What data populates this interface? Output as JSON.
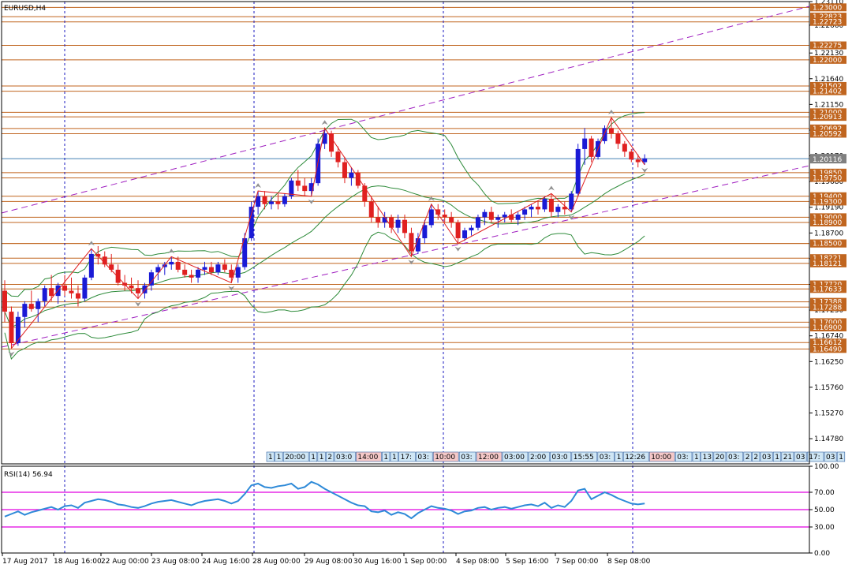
{
  "window": {
    "symbol_label": "EURUSD,H4",
    "rsi_label": "RSI(14) 56.94"
  },
  "colors": {
    "bg": "#ffffff",
    "frame": "#000000",
    "bull": "#1a1ad6",
    "bear": "#e02020",
    "band": "#2e8b3a",
    "level_line": "#c0651f",
    "level_box": "#c0651f",
    "channel": "#a020c0",
    "session": "#1818c0",
    "zigzag": "#e02020",
    "fractal": "#909090",
    "rsi_line": "#2e8ad8",
    "rsi_level": "#e000e0",
    "price_line": "#4682b4",
    "strip_fill": "#cfe6f5",
    "strip_highlight": "#f5c8c8"
  },
  "chart_data": {
    "type": "candlestick",
    "timeframe": "H4",
    "y_axis_ticks": [
      "1.23110",
      "1.22660",
      "1.22130",
      "1.21640",
      "1.21150",
      "1.20660",
      "1.20170",
      "1.19680",
      "1.19190",
      "1.18700",
      "1.18210",
      "1.17720",
      "1.17230",
      "1.16740",
      "1.16250",
      "1.15760",
      "1.15270",
      "1.14780"
    ],
    "x_axis_ticks": [
      "17 Aug 2017",
      "18 Aug 16:00",
      "22 Aug 00:00",
      "23 Aug 08:00",
      "24 Aug 16:00",
      "28 Aug 00:00",
      "29 Aug 08:00",
      "30 Aug 16:00",
      "1 Sep 00:00",
      "4 Sep 08:00",
      "5 Sep 16:00",
      "7 Sep 00:00",
      "8 Sep 08:00"
    ],
    "price_levels": [
      "1.23000",
      "1.22823",
      "1.22723",
      "1.22275",
      "1.22000",
      "1.21502",
      "1.21402",
      "1.21000",
      "1.20913",
      "1.20692",
      "1.20592",
      "1.19850",
      "1.19750",
      "1.19400",
      "1.19300",
      "1.19000",
      "1.18900",
      "1.18500",
      "1.18500",
      "1.18221",
      "1.18121",
      "1.17720",
      "1.17633",
      "1.17388",
      "1.17288",
      "1.17000",
      "1.16900",
      "1.16612",
      "1.16490"
    ],
    "current_price": "1.20116",
    "candles": [
      [
        1.176,
        1.178,
        1.17,
        1.172
      ],
      [
        1.172,
        1.173,
        1.165,
        1.166
      ],
      [
        1.166,
        1.172,
        1.1655,
        1.171
      ],
      [
        1.171,
        1.174,
        1.169,
        1.1735
      ],
      [
        1.1735,
        1.176,
        1.172,
        1.1725
      ],
      [
        1.1725,
        1.1745,
        1.17,
        1.174
      ],
      [
        1.174,
        1.177,
        1.173,
        1.1765
      ],
      [
        1.1765,
        1.179,
        1.174,
        1.175
      ],
      [
        1.175,
        1.1775,
        1.1735,
        1.177
      ],
      [
        1.177,
        1.179,
        1.175,
        1.176
      ],
      [
        1.176,
        1.1785,
        1.1745,
        1.1755
      ],
      [
        1.1755,
        1.177,
        1.173,
        1.1745
      ],
      [
        1.1745,
        1.179,
        1.174,
        1.1785
      ],
      [
        1.1785,
        1.184,
        1.178,
        1.183
      ],
      [
        1.183,
        1.1845,
        1.181,
        1.1825
      ],
      [
        1.1825,
        1.1835,
        1.1805,
        1.181
      ],
      [
        1.181,
        1.183,
        1.1795,
        1.18
      ],
      [
        1.18,
        1.181,
        1.177,
        1.1775
      ],
      [
        1.1775,
        1.179,
        1.176,
        1.177
      ],
      [
        1.177,
        1.1785,
        1.1755,
        1.1765
      ],
      [
        1.1765,
        1.178,
        1.1745,
        1.1755
      ],
      [
        1.1755,
        1.1775,
        1.1745,
        1.177
      ],
      [
        1.177,
        1.18,
        1.176,
        1.1795
      ],
      [
        1.1795,
        1.181,
        1.178,
        1.1805
      ],
      [
        1.1805,
        1.1815,
        1.179,
        1.181
      ],
      [
        1.181,
        1.1825,
        1.18,
        1.1815
      ],
      [
        1.1815,
        1.1825,
        1.1795,
        1.18
      ],
      [
        1.18,
        1.181,
        1.1785,
        1.179
      ],
      [
        1.179,
        1.18,
        1.1775,
        1.1785
      ],
      [
        1.1785,
        1.1805,
        1.1775,
        1.18
      ],
      [
        1.18,
        1.1815,
        1.179,
        1.1805
      ],
      [
        1.1805,
        1.1815,
        1.179,
        1.1795
      ],
      [
        1.1795,
        1.1815,
        1.179,
        1.181
      ],
      [
        1.181,
        1.182,
        1.1795,
        1.18
      ],
      [
        1.18,
        1.181,
        1.1775,
        1.1785
      ],
      [
        1.1785,
        1.181,
        1.1775,
        1.1805
      ],
      [
        1.1805,
        1.187,
        1.18,
        1.186
      ],
      [
        1.186,
        1.193,
        1.1855,
        1.192
      ],
      [
        1.192,
        1.195,
        1.1905,
        1.194
      ],
      [
        1.194,
        1.195,
        1.1915,
        1.1925
      ],
      [
        1.1925,
        1.194,
        1.1915,
        1.193
      ],
      [
        1.193,
        1.1945,
        1.1915,
        1.1925
      ],
      [
        1.1925,
        1.1945,
        1.192,
        1.194
      ],
      [
        1.194,
        1.1975,
        1.1935,
        1.197
      ],
      [
        1.197,
        1.199,
        1.195,
        1.196
      ],
      [
        1.196,
        1.1975,
        1.194,
        1.195
      ],
      [
        1.195,
        1.1975,
        1.194,
        1.1965
      ],
      [
        1.1965,
        1.205,
        1.196,
        1.204
      ],
      [
        1.204,
        1.207,
        1.203,
        1.206
      ],
      [
        1.206,
        1.2065,
        1.2015,
        1.2025
      ],
      [
        1.2025,
        1.2035,
        1.1995,
        1.2005
      ],
      [
        1.2005,
        1.2015,
        1.1965,
        1.1975
      ],
      [
        1.1975,
        1.1995,
        1.196,
        1.1985
      ],
      [
        1.1985,
        1.199,
        1.1955,
        1.196
      ],
      [
        1.196,
        1.1965,
        1.192,
        1.193
      ],
      [
        1.193,
        1.194,
        1.189,
        1.19
      ],
      [
        1.19,
        1.192,
        1.188,
        1.189
      ],
      [
        1.189,
        1.191,
        1.188,
        1.19
      ],
      [
        1.19,
        1.1905,
        1.187,
        1.188
      ],
      [
        1.188,
        1.1905,
        1.187,
        1.1895
      ],
      [
        1.1895,
        1.1905,
        1.186,
        1.187
      ],
      [
        1.187,
        1.188,
        1.1825,
        1.1835
      ],
      [
        1.1835,
        1.187,
        1.183,
        1.186
      ],
      [
        1.186,
        1.1895,
        1.185,
        1.1885
      ],
      [
        1.1885,
        1.1925,
        1.188,
        1.1915
      ],
      [
        1.1915,
        1.1925,
        1.1895,
        1.1905
      ],
      [
        1.1905,
        1.1915,
        1.189,
        1.19
      ],
      [
        1.19,
        1.191,
        1.188,
        1.189
      ],
      [
        1.189,
        1.1895,
        1.185,
        1.186
      ],
      [
        1.186,
        1.188,
        1.1855,
        1.1875
      ],
      [
        1.1875,
        1.1885,
        1.1865,
        1.188
      ],
      [
        1.188,
        1.1905,
        1.1875,
        1.19
      ],
      [
        1.19,
        1.1915,
        1.1885,
        1.191
      ],
      [
        1.191,
        1.192,
        1.189,
        1.1895
      ],
      [
        1.1895,
        1.1905,
        1.188,
        1.19
      ],
      [
        1.19,
        1.191,
        1.189,
        1.1905
      ],
      [
        1.1905,
        1.1915,
        1.189,
        1.1895
      ],
      [
        1.1895,
        1.191,
        1.1885,
        1.1905
      ],
      [
        1.1905,
        1.192,
        1.1895,
        1.1915
      ],
      [
        1.1915,
        1.1925,
        1.19,
        1.192
      ],
      [
        1.192,
        1.193,
        1.1905,
        1.1915
      ],
      [
        1.1915,
        1.194,
        1.191,
        1.1935
      ],
      [
        1.1935,
        1.1945,
        1.19,
        1.191
      ],
      [
        1.191,
        1.1925,
        1.19,
        1.192
      ],
      [
        1.192,
        1.193,
        1.1905,
        1.1915
      ],
      [
        1.1915,
        1.195,
        1.191,
        1.1945
      ],
      [
        1.1945,
        1.204,
        1.194,
        1.203
      ],
      [
        1.203,
        1.207,
        1.2,
        1.205
      ],
      [
        1.205,
        1.2055,
        1.2005,
        1.2015
      ],
      [
        1.2015,
        1.205,
        1.201,
        1.2045
      ],
      [
        1.2045,
        1.2075,
        1.204,
        1.207
      ],
      [
        1.207,
        1.209,
        1.205,
        1.206
      ],
      [
        1.206,
        1.2065,
        1.203,
        1.204
      ],
      [
        1.204,
        1.2045,
        1.2015,
        1.2025
      ],
      [
        1.2025,
        1.203,
        1.2005,
        1.201
      ],
      [
        1.201,
        1.202,
        1.1995,
        1.2005
      ],
      [
        1.2005,
        1.202,
        1.2,
        1.2012
      ]
    ],
    "rsi": {
      "name": "RSI(14)",
      "value": 56.94,
      "levels": [
        70,
        50,
        30
      ],
      "y_axis_ticks": [
        "100.00",
        "70.00",
        "50.00",
        "30.00",
        "0.00"
      ],
      "values": [
        42,
        45,
        48,
        44,
        47,
        49,
        51,
        53,
        50,
        54,
        55,
        52,
        58,
        60,
        62,
        61,
        59,
        56,
        55,
        53,
        52,
        54,
        57,
        59,
        60,
        61,
        59,
        57,
        55,
        58,
        60,
        61,
        62,
        60,
        57,
        60,
        68,
        78,
        80,
        76,
        75,
        77,
        78,
        80,
        74,
        76,
        82,
        79,
        74,
        70,
        66,
        62,
        58,
        55,
        54,
        48,
        47,
        49,
        44,
        47,
        45,
        40,
        46,
        50,
        54,
        52,
        51,
        49,
        45,
        48,
        49,
        52,
        53,
        50,
        52,
        53,
        51,
        53,
        55,
        56,
        54,
        58,
        52,
        55,
        53,
        60,
        72,
        74,
        62,
        66,
        70,
        67,
        63,
        60,
        57,
        56,
        57
      ]
    },
    "legend_strip": [
      "1",
      "1",
      "20:00",
      "1",
      "1",
      "2",
      "03:0",
      "14:00",
      "1",
      "1",
      "17:",
      "03:",
      "10:00",
      "03:",
      "12:00",
      "03:00",
      "2:00",
      "03:0",
      "15:55",
      "03:",
      "1",
      "12:26",
      "10:00",
      "03:",
      "1",
      "13",
      "20",
      "03:",
      "2",
      "2",
      "03",
      "1",
      "21",
      "03",
      "17:",
      "03",
      "1"
    ]
  }
}
